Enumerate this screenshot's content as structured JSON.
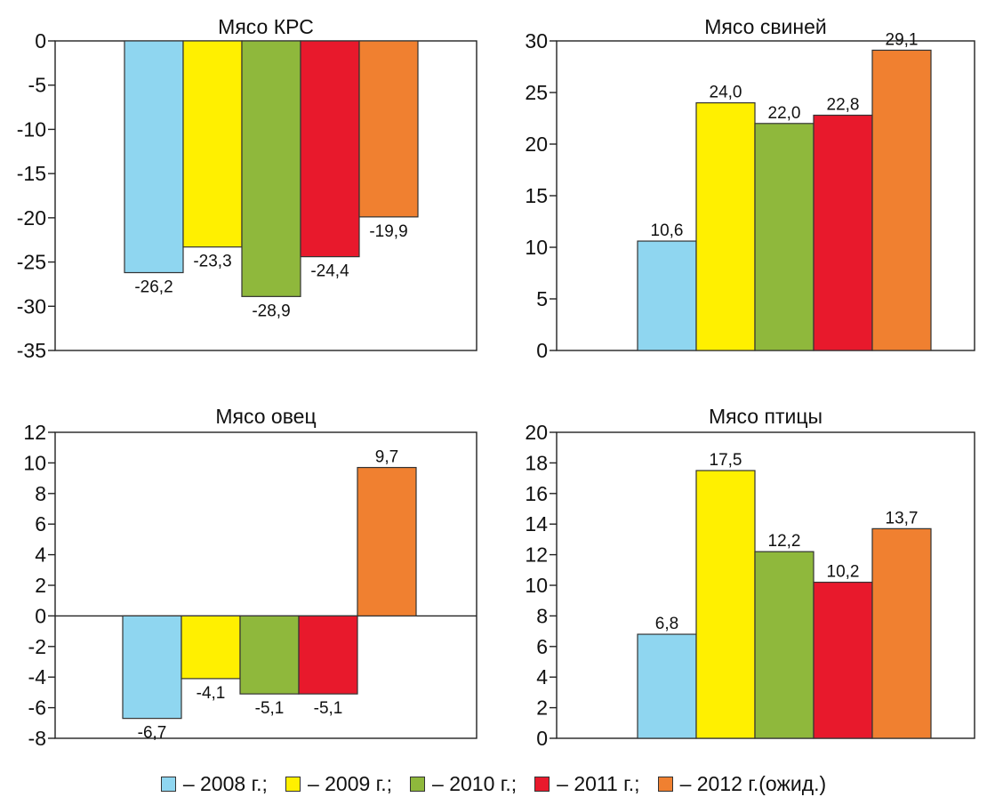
{
  "series": [
    {
      "name": "– 2008 г.;",
      "color": "#8fd6f0"
    },
    {
      "name": "– 2009 г.;",
      "color": "#fff000"
    },
    {
      "name": "– 2010 г.;",
      "color": "#8fb83c"
    },
    {
      "name": "– 2011 г.;",
      "color": "#e8192c"
    },
    {
      "name": "– 2012 г.(ожид.)",
      "color": "#f08030"
    }
  ],
  "chart_data": [
    {
      "type": "bar",
      "title": "Мясо КРС",
      "categories": [
        "2008 г.",
        "2009 г.",
        "2010 г.",
        "2011 г.",
        "2012 г.(ожид.)"
      ],
      "values": [
        -26.2,
        -23.3,
        -28.9,
        -24.4,
        -19.9
      ],
      "value_labels": [
        "-26,2",
        "-23,3",
        "-28,9",
        "-24,4",
        "-19,9"
      ],
      "ylim": [
        -35,
        0
      ],
      "yticks": [
        0,
        -5,
        -10,
        -15,
        -20,
        -25,
        -30,
        -35
      ],
      "ytick_labels": [
        "0",
        "-5",
        "-10",
        "-15",
        "-20",
        "-25",
        "-30",
        "-35"
      ]
    },
    {
      "type": "bar",
      "title": "Мясо свиней",
      "categories": [
        "2008 г.",
        "2009 г.",
        "2010 г.",
        "2011 г.",
        "2012 г.(ожид.)"
      ],
      "values": [
        10.6,
        24.0,
        22.0,
        22.8,
        29.1
      ],
      "value_labels": [
        "10,6",
        "24,0",
        "22,0",
        "22,8",
        "29,1"
      ],
      "ylim": [
        0,
        30
      ],
      "yticks": [
        0,
        5,
        10,
        15,
        20,
        25,
        30
      ],
      "ytick_labels": [
        "0",
        "5",
        "10",
        "15",
        "20",
        "25",
        "30"
      ]
    },
    {
      "type": "bar",
      "title": "Мясо овец",
      "categories": [
        "2008 г.",
        "2009 г.",
        "2010 г.",
        "2011 г.",
        "2012 г.(ожид.)"
      ],
      "values": [
        -6.7,
        -4.1,
        -5.1,
        -5.1,
        9.7
      ],
      "value_labels": [
        "-6,7",
        "-4,1",
        "-5,1",
        "-5,1",
        "9,7"
      ],
      "ylim": [
        -8,
        12
      ],
      "yticks": [
        12,
        10,
        8,
        6,
        4,
        2,
        0,
        -2,
        -4,
        -6,
        -8
      ],
      "ytick_labels": [
        "12",
        "10",
        "8",
        "6",
        "4",
        "2",
        "0",
        "-2",
        "-4",
        "-6",
        "-8"
      ]
    },
    {
      "type": "bar",
      "title": "Мясо птицы",
      "categories": [
        "2008 г.",
        "2009 г.",
        "2010 г.",
        "2011 г.",
        "2012 г.(ожид.)"
      ],
      "values": [
        6.8,
        17.5,
        12.2,
        10.2,
        13.7
      ],
      "value_labels": [
        "6,8",
        "17,5",
        "12,2",
        "10,2",
        "13,7"
      ],
      "ylim": [
        0,
        20
      ],
      "yticks": [
        20,
        18,
        16,
        14,
        12,
        10,
        8,
        6,
        4,
        2,
        0
      ],
      "ytick_labels": [
        "20",
        "18",
        "16",
        "14",
        "12",
        "10",
        "8",
        "6",
        "4",
        "2",
        "0"
      ]
    }
  ]
}
